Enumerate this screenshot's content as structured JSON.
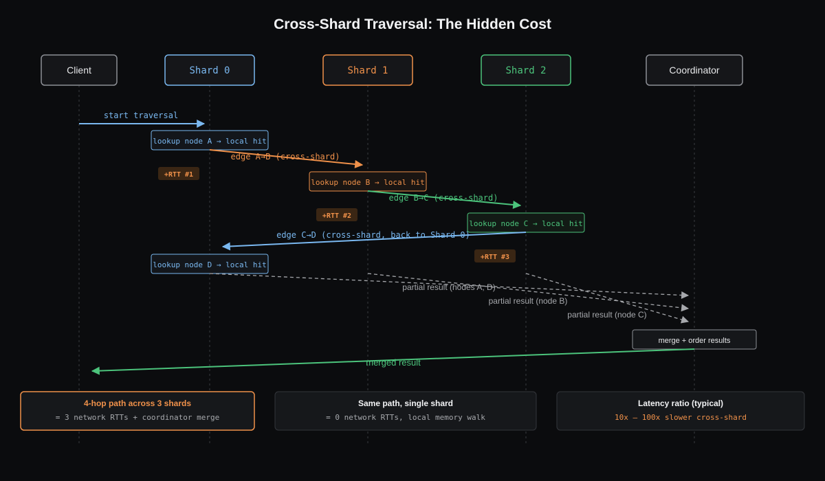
{
  "title": "Cross-Shard Traversal: The Hidden Cost",
  "colors": {
    "background": "#0b0c0e",
    "neutral": "#c9ccd1",
    "shard0": "#7ab8f0",
    "shard1": "#f0914a",
    "shard2": "#4cc47c",
    "dashed": "#a6a8ac",
    "rtt_bg": "#3a2614"
  },
  "participants": [
    {
      "id": "client",
      "label": "Client",
      "style": "neutral"
    },
    {
      "id": "shard0",
      "label": "Shard 0",
      "style": "shard0"
    },
    {
      "id": "shard1",
      "label": "Shard 1",
      "style": "shard1"
    },
    {
      "id": "shard2",
      "label": "Shard 2",
      "style": "shard2"
    },
    {
      "id": "coordinator",
      "label": "Coordinator",
      "style": "neutral"
    }
  ],
  "messages": [
    {
      "from": "client",
      "to": "shard0",
      "label": "start traversal",
      "style": "shard0"
    },
    {
      "from": "shard0",
      "to": "shard1",
      "label": "edge A→B (cross-shard)",
      "style": "shard1"
    },
    {
      "from": "shard1",
      "to": "shard2",
      "label": "edge B→C (cross-shard)",
      "style": "shard2"
    },
    {
      "from": "shard2",
      "to": "shard0",
      "label": "edge C→D (cross-shard, back to Shard 0)",
      "style": "shard0"
    },
    {
      "from": "shard0",
      "to": "coordinator",
      "label": "partial result (nodes A, D)",
      "style": "dashed"
    },
    {
      "from": "shard1",
      "to": "coordinator",
      "label": "partial result (node B)",
      "style": "dashed"
    },
    {
      "from": "shard2",
      "to": "coordinator",
      "label": "partial result (node C)",
      "style": "dashed"
    },
    {
      "from": "coordinator",
      "to": "client",
      "label": "merged result",
      "style": "shard2"
    }
  ],
  "lookups": [
    {
      "at": "shard0",
      "label": "lookup node A → local hit",
      "style": "shard0"
    },
    {
      "at": "shard1",
      "label": "lookup node B → local hit",
      "style": "shard1"
    },
    {
      "at": "shard2",
      "label": "lookup node C → local hit",
      "style": "shard2"
    },
    {
      "at": "shard0",
      "label": "lookup node D → local hit",
      "style": "shard0"
    }
  ],
  "rtt_badges": [
    "+RTT #1",
    "+RTT #2",
    "+RTT #3"
  ],
  "merge_box": {
    "at": "coordinator",
    "label": "merge + order results"
  },
  "summary": [
    {
      "title": "4-hop path across 3 shards",
      "detail": "= 3 network RTTs + coordinator merge",
      "style": "shard1"
    },
    {
      "title": "Same path, single shard",
      "detail": "= 0 network RTTs, local memory walk",
      "style": "neutral"
    },
    {
      "title": "Latency ratio (typical)",
      "detail": "10x – 100x slower cross-shard",
      "style": "ratio"
    }
  ]
}
